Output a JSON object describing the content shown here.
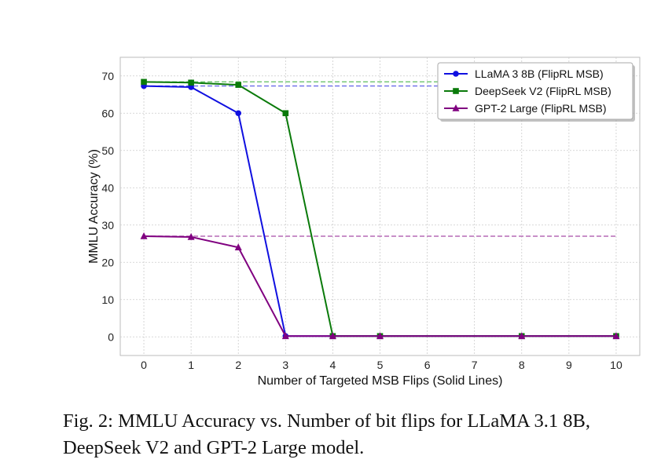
{
  "chart_data": {
    "type": "line",
    "xlabel": "Number of Targeted MSB Flips (Solid Lines)",
    "ylabel": "MMLU Accuracy (%)",
    "xlim": [
      -0.5,
      10.5
    ],
    "ylim": [
      -5,
      75
    ],
    "x_ticks": [
      0,
      1,
      2,
      3,
      4,
      5,
      6,
      7,
      8,
      9,
      10
    ],
    "y_ticks": [
      0,
      10,
      20,
      30,
      40,
      50,
      60,
      70
    ],
    "grid": true,
    "legend_position": "top-right",
    "series": [
      {
        "name": "LLaMA 3 8B (FlipRL MSB)",
        "color": "#1010e0",
        "marker": "circle",
        "x": [
          0,
          1,
          2,
          3,
          4,
          5,
          8,
          10
        ],
        "y": [
          67.3,
          67.0,
          60.0,
          0.2,
          0.2,
          0.2,
          0.2,
          0.2
        ],
        "baseline": 67.3,
        "baseline_color": "#6a6ae8"
      },
      {
        "name": "DeepSeek V2 (FlipRL MSB)",
        "color": "#0a7a0a",
        "marker": "square",
        "x": [
          0,
          1,
          2,
          3,
          4,
          5,
          8,
          10
        ],
        "y": [
          68.4,
          68.2,
          67.6,
          60.0,
          0.2,
          0.2,
          0.2,
          0.2
        ],
        "baseline": 68.4,
        "baseline_color": "#6cc46c"
      },
      {
        "name": "GPT-2 Large (FlipRL MSB)",
        "color": "#800080",
        "marker": "triangle",
        "x": [
          0,
          1,
          2,
          3,
          4,
          5,
          8,
          10
        ],
        "y": [
          27.0,
          26.8,
          24.0,
          0.2,
          0.2,
          0.2,
          0.2,
          0.2
        ],
        "baseline": 27.0,
        "baseline_color": "#b66ab6"
      }
    ]
  },
  "caption": "Fig. 2: MMLU Accuracy vs. Number of bit flips for LLaMA 3.1 8B, DeepSeek V2 and GPT-2 Large model."
}
